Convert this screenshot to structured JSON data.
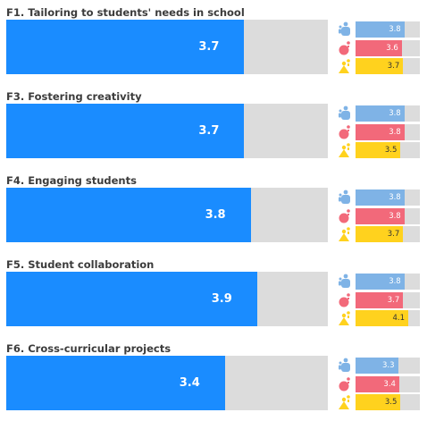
{
  "colors": {
    "main": "#1a8cff",
    "track": "#dcdcdc",
    "group_a": "#7fb3e6",
    "group_b": "#f2697a",
    "group_c": "#ffd21e"
  },
  "icons": [
    "blue-figure-icon",
    "pink-figure-icon",
    "yellow-figure-icon"
  ],
  "chart_data": {
    "type": "bar",
    "orientation": "horizontal",
    "xlim": [
      0,
      5
    ],
    "categories": [
      "F1. Tailoring to students' needs in school",
      "F3. Fostering creativity",
      "F4. Engaging students",
      "F5. Student collaboration",
      "F6. Cross-curricular projects"
    ],
    "values": [
      3.7,
      3.7,
      3.8,
      3.9,
      3.4
    ],
    "series": [
      {
        "values": [
          3.8,
          3.8,
          3.8,
          3.8,
          3.3
        ]
      },
      {
        "values": [
          3.6,
          3.8,
          3.8,
          3.7,
          3.4
        ]
      },
      {
        "values": [
          3.7,
          3.5,
          3.7,
          4.1,
          3.5
        ]
      }
    ]
  }
}
